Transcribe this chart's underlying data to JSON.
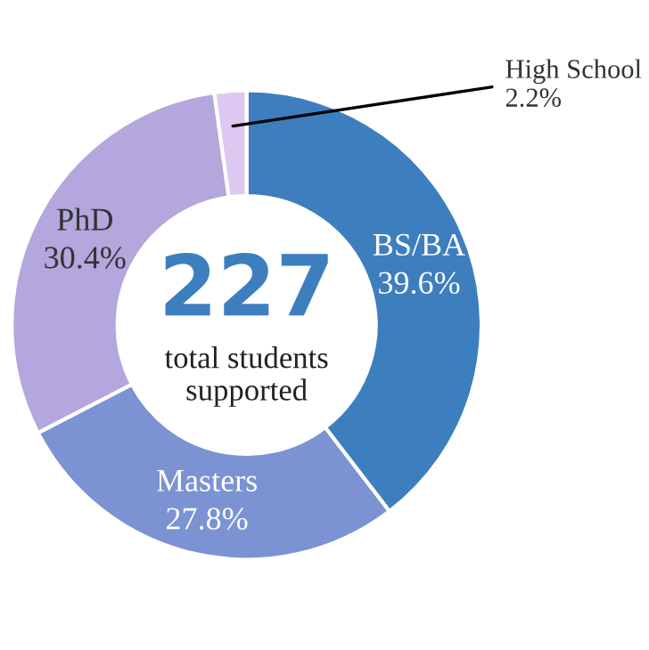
{
  "chart_data": {
    "type": "donut",
    "categories": [
      "BS/BA",
      "Masters",
      "PhD",
      "High School"
    ],
    "values": [
      39.6,
      27.8,
      30.4,
      2.2
    ],
    "colors": [
      "#3d7ebf",
      "#7b93d3",
      "#b3a7dd",
      "#dcc8f0"
    ],
    "value_labels": [
      "39.6%",
      "27.8%",
      "30.4%",
      "2.2%"
    ],
    "annotations": [
      "227",
      "total students supported"
    ],
    "legend": false
  }
}
